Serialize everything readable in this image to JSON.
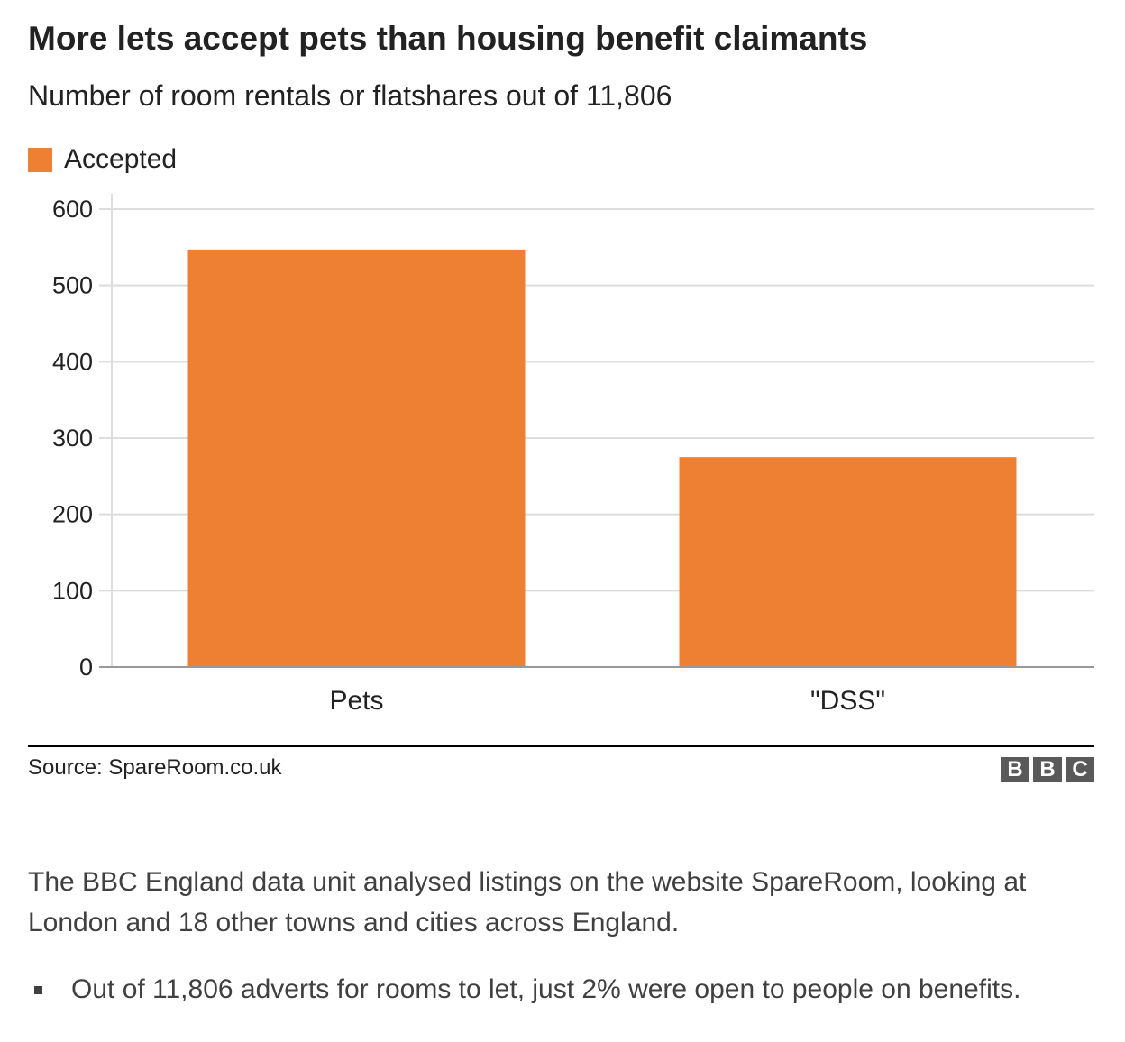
{
  "title": "More lets accept pets than housing benefit claimants",
  "subtitle": "Number of room rentals or flatshares out of 11,806",
  "colors": {
    "bar": "#ed8033",
    "grid": "#dddddd",
    "axis": "#999999",
    "logo": "#5a5a5a"
  },
  "chart_data": {
    "type": "bar",
    "title": "More lets accept pets than housing benefit claimants",
    "subtitle": "Number of room rentals or flatshares out of 11,806",
    "categories": [
      "Pets",
      "\"DSS\""
    ],
    "series": [
      {
        "name": "Accepted",
        "values": [
          547,
          275
        ]
      }
    ],
    "ylim": [
      0,
      600
    ],
    "yticks": [
      0,
      100,
      200,
      300,
      400,
      500,
      600
    ],
    "xlabel": "",
    "ylabel": "",
    "grid": true,
    "legend_position": "top-left"
  },
  "source": "Source: SpareRoom.co.uk",
  "logo": {
    "letters": [
      "B",
      "B",
      "C"
    ]
  },
  "article": {
    "paragraph": "The BBC England data unit analysed listings on the website SpareRoom, looking at London and 18 other towns and cities across England.",
    "bullet": "Out of 11,806 adverts for rooms to let, just 2% were open to people on benefits."
  }
}
